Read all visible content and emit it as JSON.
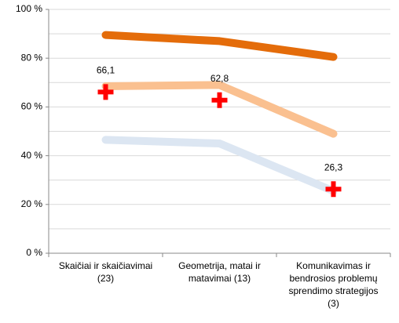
{
  "chart_data": {
    "type": "line",
    "categories": [
      "Skaičiai ir skaičiavimai\n(23)",
      "Geometrija, matai ir\nmatavimai (13)",
      "Komunikavimas ir\nbendrosios problemų\nsprendimo strategijos\n(3)"
    ],
    "series": [
      {
        "color": "#e46c0a",
        "values": [
          89.5,
          87,
          80.5
        ]
      },
      {
        "color": "#fac090",
        "values": [
          68.5,
          69,
          49
        ]
      },
      {
        "color": "#dce6f2",
        "values": [
          46.5,
          45,
          25.5
        ]
      },
      {
        "type": "marker",
        "color": "#ff0000",
        "values": [
          66.1,
          62.8,
          26.3
        ],
        "value_labels": [
          "66,1",
          "62,8",
          "26,3"
        ]
      }
    ],
    "ylim": [
      0,
      100
    ],
    "yticks": [
      {
        "value": 0,
        "label": "0 %"
      },
      {
        "value": 20,
        "label": "20 %"
      },
      {
        "value": 40,
        "label": "40 %"
      },
      {
        "value": 60,
        "label": "60 %"
      },
      {
        "value": 80,
        "label": "80 %"
      },
      {
        "value": 100,
        "label": "100 %"
      }
    ],
    "minor_yticks": [
      10,
      30,
      50,
      70,
      90
    ],
    "grid": true
  }
}
